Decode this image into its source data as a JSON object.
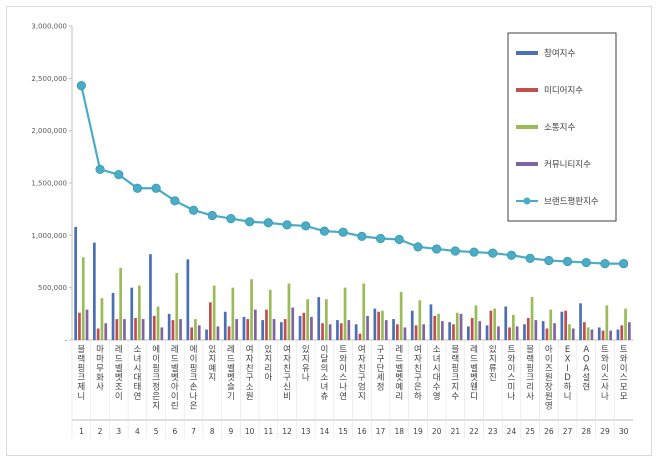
{
  "chart_data": {
    "type": "bar",
    "ylim": [
      0,
      3000000
    ],
    "yticks": [
      "-",
      "500,000",
      "1,000,000",
      "1,500,000",
      "2,000,000",
      "2,500,000",
      "3,000,000"
    ],
    "grid": false,
    "legend_position": "right",
    "categories": [
      "블랙핑크제니",
      "마마무화사",
      "레드벨벳조이",
      "소녀시대태연",
      "에이핑크정은지",
      "레드벨벳아이린",
      "에이핑크손나은",
      "있지예지",
      "레드벨벳슬기",
      "여자친구소원",
      "있지리아",
      "여자친구신비",
      "있지유나",
      "이달의소녀츄",
      "트와이스나연",
      "여자친구엄지",
      "구구단세정",
      "레드벨벳예리",
      "여자친구은하",
      "소녀시대수영",
      "블랙핑크지수",
      "레드벨벳웬디",
      "있지류진",
      "트와이스미나",
      "블랙핑크리사",
      "아이즈원장원영",
      "EXID하니",
      "AOA설현",
      "트와이스사나",
      "트와이스모모"
    ],
    "ranks": [
      "1",
      "2",
      "3",
      "4",
      "5",
      "6",
      "7",
      "8",
      "9",
      "10",
      "11",
      "12",
      "13",
      "14",
      "15",
      "16",
      "17",
      "18",
      "19",
      "20",
      "21",
      "22",
      "23",
      "24",
      "25",
      "26",
      "27",
      "28",
      "29",
      "30"
    ],
    "series": [
      {
        "name": "참여지수",
        "color": "#4a6fb5",
        "type": "bar",
        "values": [
          1080000,
          930000,
          450000,
          500000,
          820000,
          250000,
          770000,
          100000,
          270000,
          220000,
          190000,
          170000,
          230000,
          410000,
          190000,
          150000,
          300000,
          200000,
          280000,
          340000,
          170000,
          130000,
          140000,
          320000,
          150000,
          180000,
          270000,
          350000,
          120000,
          100000
        ]
      },
      {
        "name": "미디어지수",
        "color": "#c0504d",
        "type": "bar",
        "values": [
          260000,
          110000,
          200000,
          210000,
          230000,
          190000,
          120000,
          360000,
          130000,
          200000,
          290000,
          200000,
          260000,
          160000,
          160000,
          60000,
          270000,
          150000,
          140000,
          230000,
          150000,
          210000,
          280000,
          120000,
          210000,
          110000,
          280000,
          170000,
          90000,
          140000
        ]
      },
      {
        "name": "소통지수",
        "color": "#9bbb59",
        "type": "bar",
        "values": [
          790000,
          400000,
          690000,
          520000,
          320000,
          640000,
          200000,
          520000,
          500000,
          580000,
          480000,
          540000,
          390000,
          390000,
          500000,
          540000,
          280000,
          460000,
          380000,
          250000,
          260000,
          330000,
          300000,
          240000,
          410000,
          290000,
          150000,
          120000,
          330000,
          300000
        ]
      },
      {
        "name": "커뮤니티지수",
        "color": "#8064a2",
        "type": "bar",
        "values": [
          290000,
          160000,
          200000,
          200000,
          120000,
          200000,
          140000,
          130000,
          200000,
          290000,
          200000,
          310000,
          220000,
          150000,
          190000,
          230000,
          190000,
          120000,
          150000,
          180000,
          250000,
          180000,
          130000,
          130000,
          190000,
          160000,
          110000,
          100000,
          90000,
          170000
        ]
      },
      {
        "name": "브랜드평판지수",
        "color": "#4bacc6",
        "type": "line",
        "values": [
          2430000,
          1630000,
          1580000,
          1450000,
          1450000,
          1330000,
          1240000,
          1190000,
          1160000,
          1130000,
          1120000,
          1100000,
          1090000,
          1040000,
          1030000,
          990000,
          970000,
          960000,
          890000,
          870000,
          850000,
          840000,
          830000,
          810000,
          780000,
          760000,
          750000,
          740000,
          730000,
          730000
        ]
      }
    ]
  }
}
